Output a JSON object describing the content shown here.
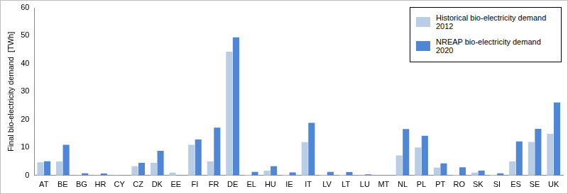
{
  "chart_data": {
    "type": "bar",
    "y_label": "Final bio-electricity demand  [TWh]",
    "categories": [
      "AT",
      "BE",
      "BG",
      "HR",
      "CY",
      "CZ",
      "DK",
      "EE",
      "FI",
      "FR",
      "DE",
      "EL",
      "HU",
      "IE",
      "IT",
      "LV",
      "LT",
      "LU",
      "MT",
      "NL",
      "PL",
      "PT",
      "RO",
      "SK",
      "SI",
      "ES",
      "SE",
      "UK"
    ],
    "series": [
      {
        "name": "Historical bio-electricity demand 2012",
        "color": "#b9cde5",
        "values": [
          4.7,
          5.0,
          0.1,
          0.1,
          0.1,
          3.3,
          4.5,
          1.0,
          11.0,
          5.0,
          44.3,
          0.2,
          1.7,
          0.2,
          11.9,
          0.2,
          0.2,
          0.1,
          0.0,
          7.2,
          10.0,
          2.8,
          0.2,
          1.0,
          0.2,
          5.0,
          12.0,
          14.9
        ]
      },
      {
        "name": "NREAP bio-electricity demand 2020",
        "color": "#4f86d6",
        "values": [
          5.1,
          11.0,
          0.8,
          0.7,
          0.1,
          4.5,
          8.8,
          0.2,
          12.9,
          17.1,
          49.4,
          1.3,
          3.3,
          1.1,
          18.8,
          1.3,
          1.2,
          0.4,
          0.1,
          16.6,
          14.2,
          4.3,
          2.9,
          1.7,
          0.8,
          12.2,
          16.7,
          26.1
        ]
      }
    ],
    "ylim": [
      0,
      60
    ],
    "yticks": [
      0,
      10,
      20,
      30,
      40,
      50,
      60
    ],
    "grid": false,
    "legend": "top-right"
  }
}
